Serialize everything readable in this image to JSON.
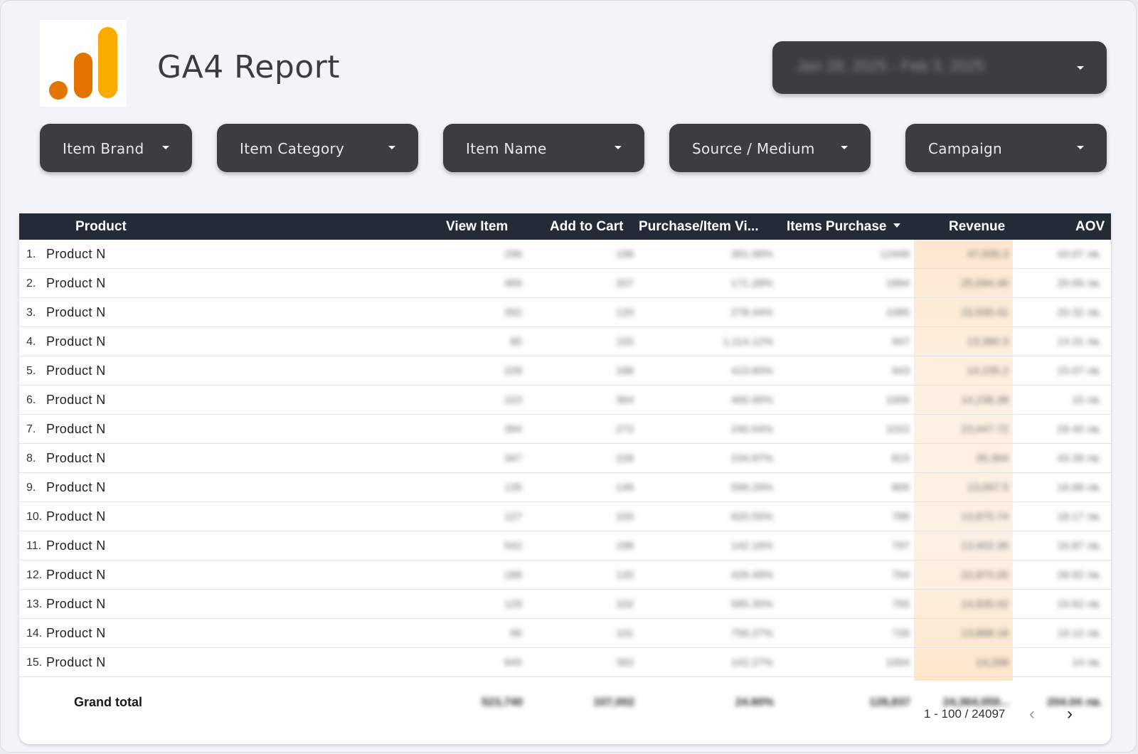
{
  "header": {
    "title": "GA4 Report",
    "date_range": "Jan 28, 2025 - Feb 3, 2025"
  },
  "filters": [
    {
      "label": "Item Brand"
    },
    {
      "label": "Item Category"
    },
    {
      "label": "Item Name"
    },
    {
      "label": "Source / Medium"
    },
    {
      "label": "Campaign"
    }
  ],
  "table": {
    "columns": [
      "Product",
      "View Item",
      "Add to Cart",
      "Purchase/Item Vi...",
      "Items Purchase",
      "Revenue",
      "AOV"
    ],
    "rows": [
      {
        "n": "1.",
        "product": "Product  N",
        "view": "296",
        "cart": "198",
        "rate": "391.96%",
        "items": "12449",
        "revenue": "47,935.3",
        "aov": "43.07 лв."
      },
      {
        "n": "2.",
        "product": "Product  N",
        "view": "469",
        "cart": "207",
        "rate": "171.28%",
        "items": "1894",
        "revenue": "25,094.46",
        "aov": "29.69 лв."
      },
      {
        "n": "3.",
        "product": "Product  N",
        "view": "392",
        "cart": "120",
        "rate": "278.44%",
        "items": "1085",
        "revenue": "15,930.41",
        "aov": "20.32 лв."
      },
      {
        "n": "4.",
        "product": "Product  N",
        "view": "85",
        "cart": "155",
        "rate": "1,114.12%",
        "items": "947",
        "revenue": "13,380.3",
        "aov": "14.31 лв."
      },
      {
        "n": "5.",
        "product": "Product  N",
        "view": "228",
        "cart": "188",
        "rate": "413.60%",
        "items": "943",
        "revenue": "14,235.2",
        "aov": "15.07 лв."
      },
      {
        "n": "6.",
        "product": "Product  N",
        "view": "223",
        "cart": "364",
        "rate": "400.90%",
        "items": "1006",
        "revenue": "14,238.38",
        "aov": "15 лв."
      },
      {
        "n": "7.",
        "product": "Product  N",
        "view": "394",
        "cart": "272",
        "rate": "240.04%",
        "items": "1022",
        "revenue": "23,447.72",
        "aov": "29.40 лв."
      },
      {
        "n": "8.",
        "product": "Product  N",
        "view": "347",
        "cart": "228",
        "rate": "234.87%",
        "items": "815",
        "revenue": "35,394",
        "aov": "43.39 лв."
      },
      {
        "n": "9.",
        "product": "Product  N",
        "view": "135",
        "cart": "149",
        "rate": "596.29%",
        "items": "805",
        "revenue": "13,097.5",
        "aov": "16.68 лв."
      },
      {
        "n": "10.",
        "product": "Product  N",
        "view": "127",
        "cart": "100",
        "rate": "620.55%",
        "items": "788",
        "revenue": "13,875.74",
        "aov": "18.17 лв."
      },
      {
        "n": "11.",
        "product": "Product  N",
        "view": "542",
        "cart": "198",
        "rate": "142.16%",
        "items": "797",
        "revenue": "13,402.36",
        "aov": "16.87 лв."
      },
      {
        "n": "12.",
        "product": "Product  N",
        "view": "186",
        "cart": "120",
        "rate": "426.49%",
        "items": "794",
        "revenue": "22,874.05",
        "aov": "28.92 лв."
      },
      {
        "n": "13.",
        "product": "Product  N",
        "view": "129",
        "cart": "102",
        "rate": "585.35%",
        "items": "755",
        "revenue": "14,835.02",
        "aov": "19.62 лв."
      },
      {
        "n": "14.",
        "product": "Product  N",
        "view": "96",
        "cart": "101",
        "rate": "756.27%",
        "items": "726",
        "revenue": "13,868.18",
        "aov": "19.12 лв."
      },
      {
        "n": "15.",
        "product": "Product  N",
        "view": "645",
        "cart": "392",
        "rate": "142.27%",
        "items": "1004",
        "revenue": "14,298",
        "aov": "14 лв."
      }
    ],
    "total": {
      "label": "Grand total",
      "view": "523,740",
      "cart": "107,002",
      "rate": "24.60%",
      "items": "128,837",
      "revenue": "24,364,059...",
      "aov": "204.04 лв."
    },
    "pagination": {
      "text": "1 - 100 / 24097"
    }
  },
  "colors": {
    "background": "#f4f3f7",
    "control": "#3d3d3f",
    "table_header": "#232b36",
    "revenue_highlight": "#fdeacf",
    "logo_yellow": "#f9ab00",
    "logo_orange": "#e37400"
  },
  "icons": {
    "dropdown": "caret-down-icon",
    "prev": "chevron-left-icon",
    "next": "chevron-right-icon",
    "sort": "sort-desc-icon"
  }
}
